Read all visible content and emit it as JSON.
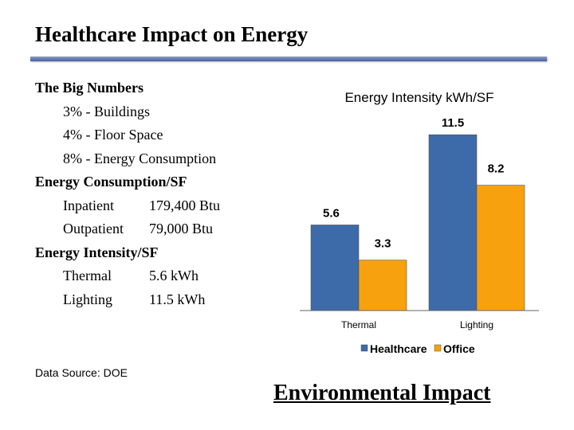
{
  "slide": {
    "title": "Healthcare Impact on Energy",
    "big_numbers": {
      "heading": "The Big Numbers",
      "items": [
        "3% - Buildings",
        "4% - Floor Space",
        "8% - Energy Consumption"
      ]
    },
    "consumption": {
      "heading": "Energy Consumption/SF",
      "rows": [
        {
          "label": "Inpatient",
          "value": "179,400 Btu"
        },
        {
          "label": "Outpatient",
          "value": "79,000 Btu"
        }
      ]
    },
    "intensity": {
      "heading": "Energy Intensity/SF",
      "rows": [
        {
          "label": "Thermal",
          "value": "5.6 kWh"
        },
        {
          "label": "Lighting",
          "value": "11.5 kWh"
        }
      ]
    },
    "source": "Data Source: DOE",
    "link": "Environmental Impact"
  },
  "chart_data": {
    "type": "bar",
    "title": "Energy Intensity kWh/SF",
    "categories": [
      "Thermal",
      "Lighting"
    ],
    "series": [
      {
        "name": "Healthcare",
        "values": [
          5.6,
          11.5
        ],
        "labels": [
          "5.6",
          "11.5"
        ]
      },
      {
        "name": "Office",
        "values": [
          3.3,
          8.2
        ],
        "labels": [
          "3.3",
          "8.2"
        ]
      }
    ],
    "ylim": [
      0,
      12.5
    ],
    "grid": false,
    "legend": "bottom",
    "colors": {
      "Healthcare": "#3d6aa8",
      "Office": "#f8a10f"
    }
  }
}
